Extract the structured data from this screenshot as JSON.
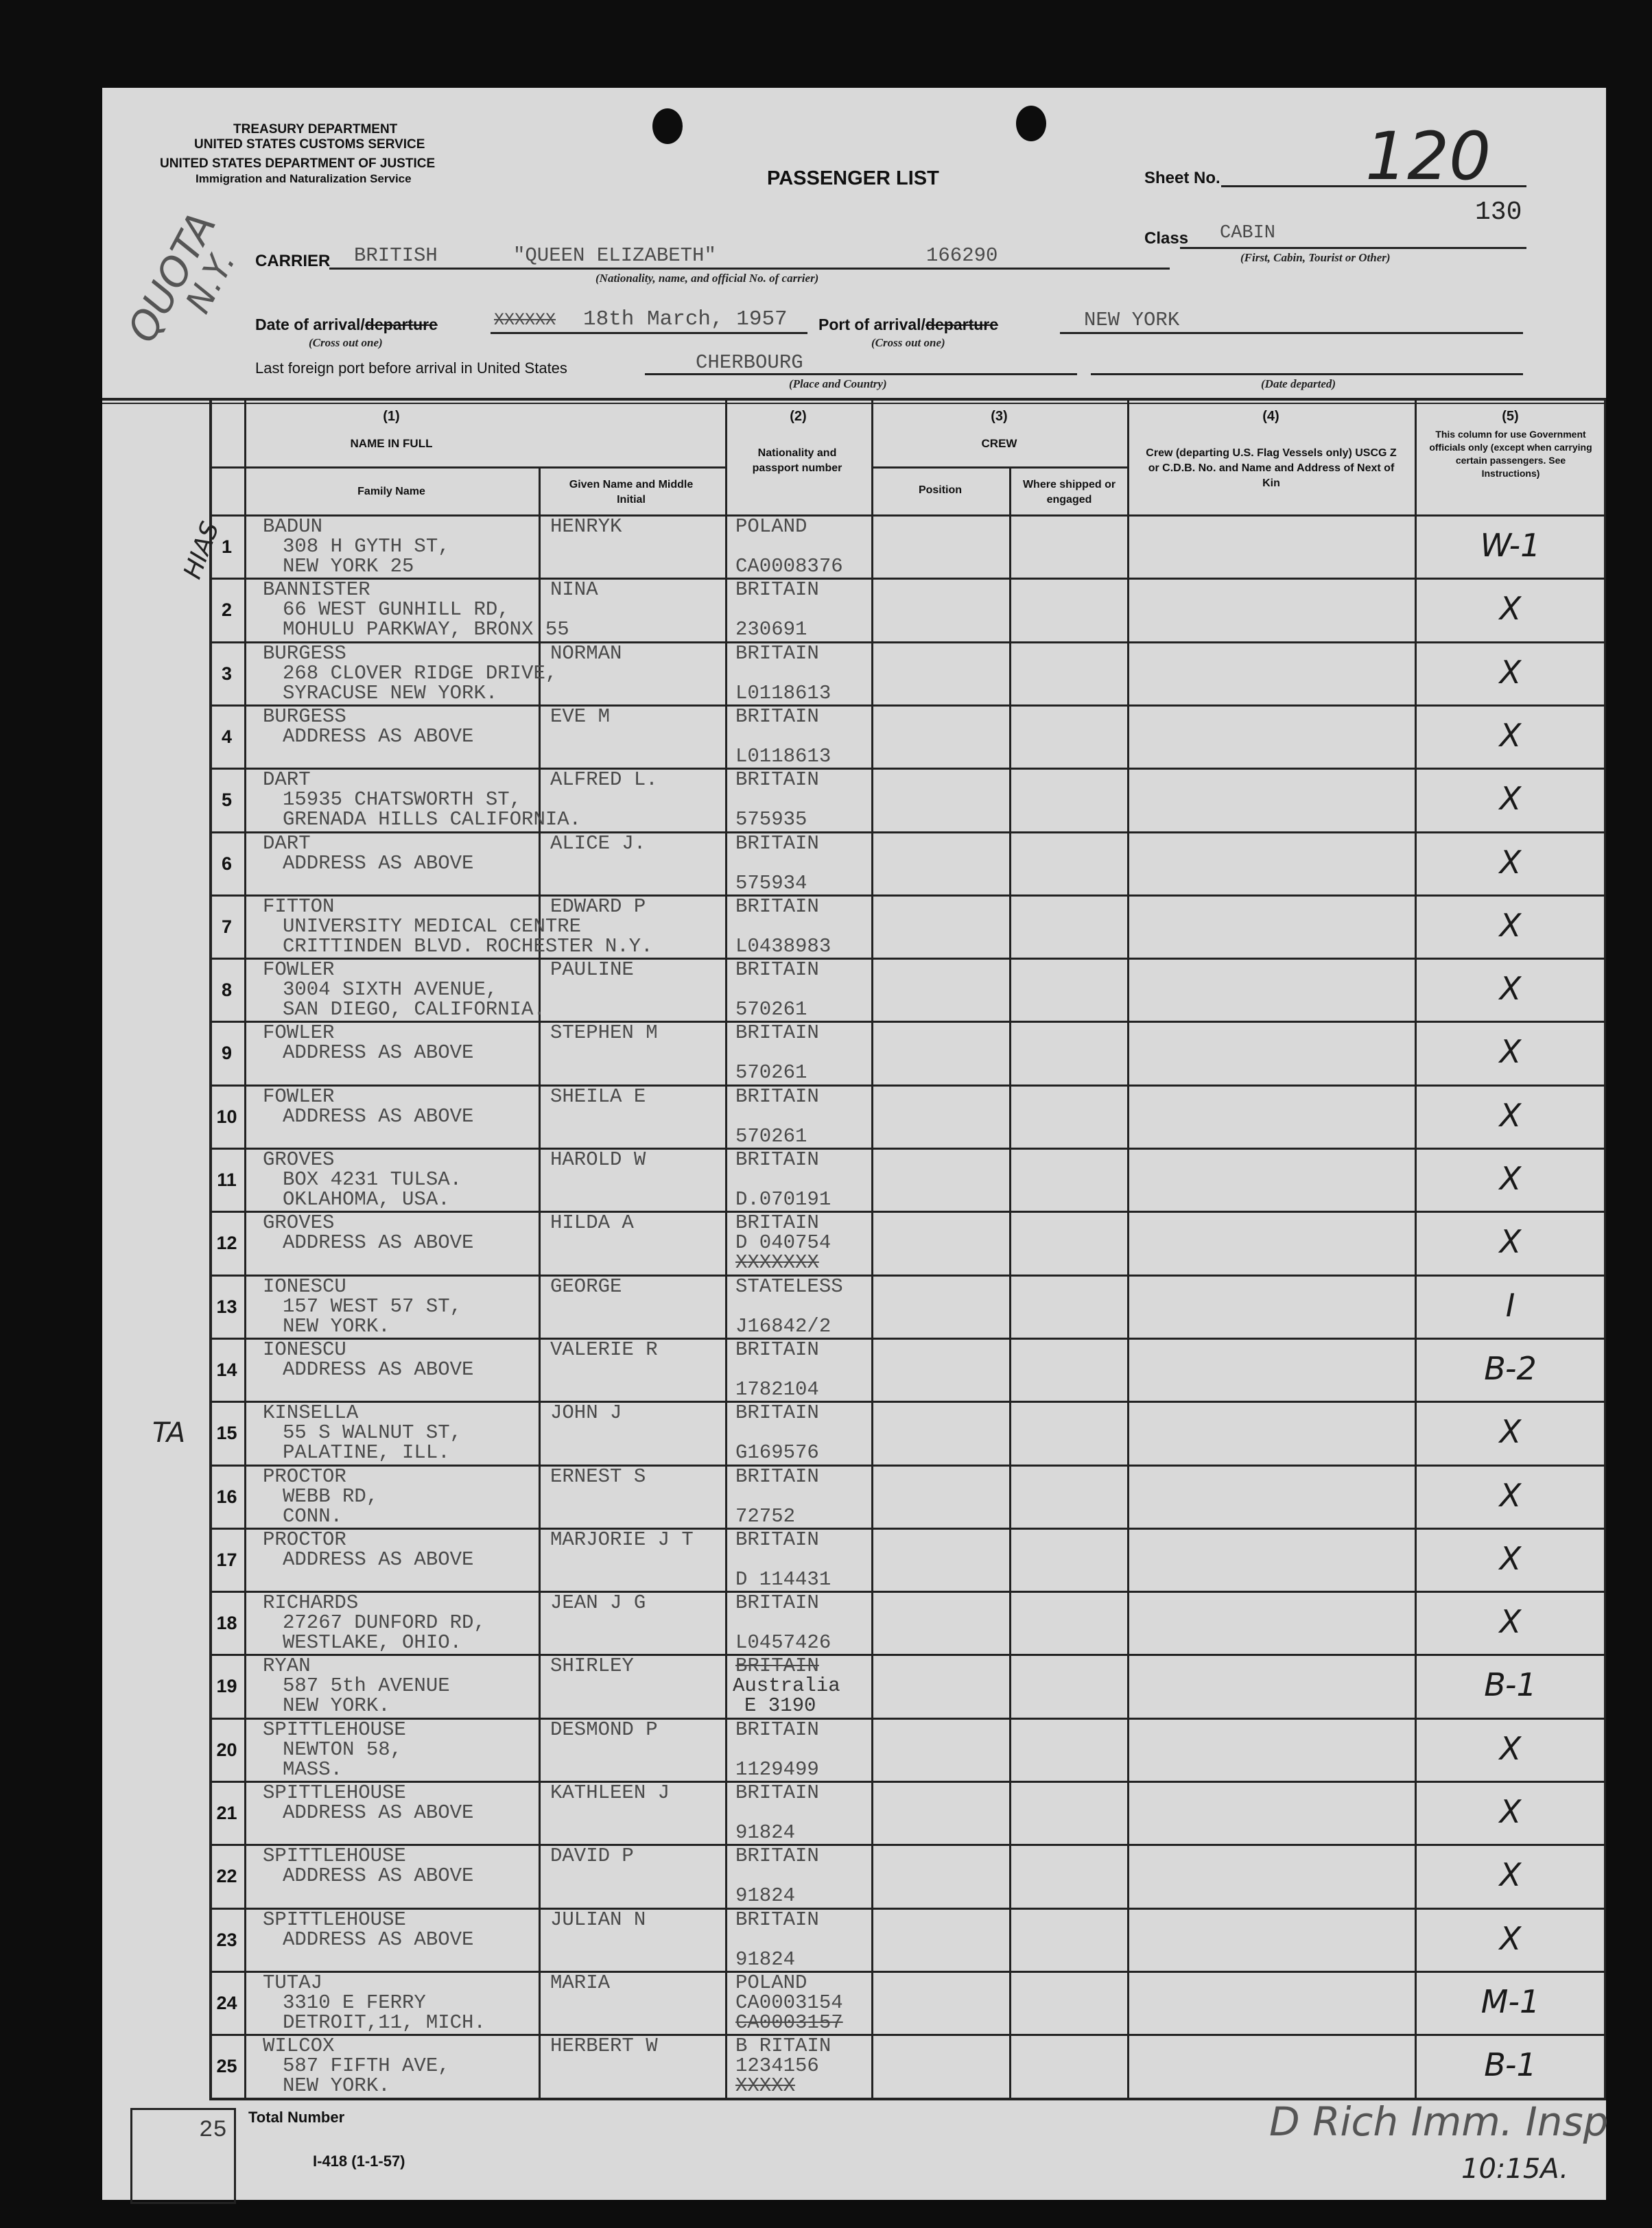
{
  "header": {
    "agency_1": "TREASURY DEPARTMENT",
    "agency_2": "UNITED STATES CUSTOMS SERVICE",
    "agency_3": "UNITED STATES DEPARTMENT OF JUSTICE",
    "agency_4": "Immigration and Naturalization Service",
    "title": "PASSENGER LIST",
    "sheet_label": "Sheet No.",
    "sheet_no": "120",
    "stamp_no": "130",
    "class_label": "Class",
    "class_value": "CABIN",
    "class_hint": "(First, Cabin, Tourist or Other)",
    "carrier_label": "CARRIER",
    "carrier_nationality": "BRITISH",
    "carrier_name": "\"QUEEN ELIZABETH\"",
    "carrier_no": "166290",
    "carrier_hint": "(Nationality, name, and official No. of carrier)",
    "date_label": "Date of arrival/",
    "date_struck": "departure",
    "date_xs": "XXXXXX",
    "date_value": "18th March, 1957",
    "cross_out": "(Cross out one)",
    "port_label": "Port of arrival/",
    "port_struck": "departure",
    "port_value": "NEW YORK",
    "last_port_label": "Last foreign port before arrival in United States",
    "last_port_value": "CHERBOURG",
    "place_hint": "(Place and Country)",
    "date_departed_hint": "(Date departed)",
    "handwritten_quota": "QUOTA",
    "handwritten_ny": "N.Y."
  },
  "columns": {
    "c1_num": "(1)",
    "c1_title": "NAME IN FULL",
    "family": "Family Name",
    "given": "Given Name and Middle Initial",
    "c2_num": "(2)",
    "c2_title": "Nationality and passport number",
    "c3_num": "(3)",
    "c3_title": "CREW",
    "position": "Position",
    "where": "Where shipped or engaged",
    "c4_num": "(4)",
    "c4_title": "Crew (departing U.S. Flag Vessels only) USCG Z or C.D.B. No. and Name and Address of Next of Kin",
    "c5_num": "(5)",
    "c5_title": "This column for use Government officials only (except when carrying certain passengers. See Instructions)"
  },
  "margin_notes": {
    "row1": "HIAS",
    "row15": "TA"
  },
  "passengers": [
    {
      "n": "1",
      "family": "BADUN",
      "addr": [
        "308 H GYTH ST,",
        "NEW YORK 25"
      ],
      "given": "HENRYK",
      "nat": "POLAND",
      "passport": "CA0008376",
      "mark": "W-1"
    },
    {
      "n": "2",
      "family": "BANNISTER",
      "addr": [
        "66 WEST GUNHILL RD,",
        "MOHULU PARKWAY, BRONX 55"
      ],
      "given": "NINA",
      "nat": "BRITAIN",
      "passport": "230691",
      "mark": "X"
    },
    {
      "n": "3",
      "family": "BURGESS",
      "addr": [
        "268 CLOVER RIDGE DRIVE,",
        "SYRACUSE NEW YORK."
      ],
      "given": "NORMAN",
      "nat": "BRITAIN",
      "passport": "L0118613",
      "mark": "X"
    },
    {
      "n": "4",
      "family": "BURGESS",
      "addr": [
        "ADDRESS AS ABOVE"
      ],
      "given": "EVE M",
      "nat": "BRITAIN",
      "passport": "L0118613",
      "mark": "X"
    },
    {
      "n": "5",
      "family": "DART",
      "addr": [
        "15935 CHATSWORTH ST,",
        "GRENADA HILLS CALIFORNIA."
      ],
      "given": "ALFRED L.",
      "nat": "BRITAIN",
      "passport": "575935",
      "mark": "X"
    },
    {
      "n": "6",
      "family": "DART",
      "addr": [
        "ADDRESS AS ABOVE"
      ],
      "given": "ALICE J.",
      "nat": "BRITAIN",
      "passport": "575934",
      "mark": "X"
    },
    {
      "n": "7",
      "family": "FITTON",
      "addr": [
        "UNIVERSITY MEDICAL CENTRE",
        "CRITTINDEN BLVD. ROCHESTER N.Y."
      ],
      "given": "EDWARD P",
      "nat": "BRITAIN",
      "passport": "L0438983",
      "mark": "X"
    },
    {
      "n": "8",
      "family": "FOWLER",
      "addr": [
        "3004 SIXTH AVENUE,",
        "SAN DIEGO, CALIFORNIA."
      ],
      "given": "PAULINE",
      "nat": "BRITAIN",
      "passport": "570261",
      "mark": "X"
    },
    {
      "n": "9",
      "family": "FOWLER",
      "addr": [
        "ADDRESS AS ABOVE"
      ],
      "given": "STEPHEN M",
      "nat": "BRITAIN",
      "passport": "570261",
      "mark": "X"
    },
    {
      "n": "10",
      "family": "FOWLER",
      "addr": [
        "ADDRESS AS ABOVE"
      ],
      "given": "SHEILA E",
      "nat": "BRITAIN",
      "passport": "570261",
      "mark": "X"
    },
    {
      "n": "11",
      "family": "GROVES",
      "addr": [
        "BOX 4231 TULSA.",
        "OKLAHOMA, USA."
      ],
      "given": "HAROLD W",
      "nat": "BRITAIN",
      "passport": "D.070191",
      "mark": "X"
    },
    {
      "n": "12",
      "family": "GROVES",
      "addr": [
        "ADDRESS AS ABOVE"
      ],
      "given": "HILDA A",
      "nat": "BRITAIN",
      "passport": "D 040754",
      "struck": "XXXXXXX",
      "mark": "X"
    },
    {
      "n": "13",
      "family": "IONESCU",
      "addr": [
        "157 WEST 57 ST,",
        "NEW YORK."
      ],
      "given": "GEORGE",
      "nat": "STATELESS",
      "passport": "J16842/2",
      "mark": "I"
    },
    {
      "n": "14",
      "family": "IONESCU",
      "addr": [
        "ADDRESS AS ABOVE"
      ],
      "given": "VALERIE R",
      "nat": "BRITAIN",
      "passport": "1782104",
      "mark": "B-2"
    },
    {
      "n": "15",
      "family": "KINSELLA",
      "addr": [
        "55 S WALNUT ST,",
        "PALATINE, ILL."
      ],
      "given": "JOHN J",
      "nat": "BRITAIN",
      "passport": "G169576",
      "mark": "X"
    },
    {
      "n": "16",
      "family": "PROCTOR",
      "addr": [
        "WEBB RD,",
        "CONN."
      ],
      "given": "ERNEST S",
      "nat": "BRITAIN",
      "passport": "72752",
      "mark": "X"
    },
    {
      "n": "17",
      "family": "PROCTOR",
      "addr": [
        "ADDRESS AS ABOVE"
      ],
      "given": "MARJORIE J T",
      "nat": "BRITAIN",
      "passport": "D 114431",
      "mark": "X"
    },
    {
      "n": "18",
      "family": "RICHARDS",
      "addr": [
        "27267 DUNFORD RD,",
        "WESTLAKE, OHIO."
      ],
      "given": "JEAN J G",
      "nat": "BRITAIN",
      "passport": "L0457426",
      "mark": "X"
    },
    {
      "n": "19",
      "family": "RYAN",
      "addr": [
        "587 5th AVENUE",
        "NEW YORK."
      ],
      "given": "SHIRLEY",
      "nat_struck": "BRITAIN",
      "nat": "Australia",
      "passport": "E 3190",
      "mark": "B-1"
    },
    {
      "n": "20",
      "family": "SPITTLEHOUSE",
      "addr": [
        "NEWTON 58,",
        "MASS."
      ],
      "given": "DESMOND P",
      "nat": "BRITAIN",
      "passport": "1129499",
      "mark": "X"
    },
    {
      "n": "21",
      "family": "SPITTLEHOUSE",
      "addr": [
        "ADDRESS AS ABOVE"
      ],
      "given": "KATHLEEN J",
      "nat": "BRITAIN",
      "passport": "91824",
      "mark": "X"
    },
    {
      "n": "22",
      "family": "SPITTLEHOUSE",
      "addr": [
        "ADDRESS AS ABOVE"
      ],
      "given": "DAVID P",
      "nat": "BRITAIN",
      "passport": "91824",
      "mark": "X"
    },
    {
      "n": "23",
      "family": "SPITTLEHOUSE",
      "addr": [
        "ADDRESS AS ABOVE"
      ],
      "given": "JULIAN N",
      "nat": "BRITAIN",
      "passport": "91824",
      "mark": "X"
    },
    {
      "n": "24",
      "family": "TUTAJ",
      "addr": [
        "3310 E FERRY",
        "DETROIT,11, MICH."
      ],
      "given": "MARIA",
      "nat": "POLAND",
      "passport": "CA0003154",
      "struck": "CA0003157",
      "mark": "M-1"
    },
    {
      "n": "25",
      "family": "WILCOX",
      "addr": [
        "587 FIFTH AVE,",
        "NEW YORK."
      ],
      "given": "HERBERT W",
      "nat": "B RITAIN",
      "passport": "1234156",
      "struck": "XXXXX",
      "mark": "B-1"
    }
  ],
  "footer": {
    "total_value": "25",
    "total_label": "Total Number",
    "form_no": "I-418 (1-1-57)",
    "signature": "D Rich Imm. Insp",
    "time": "10:15A."
  }
}
